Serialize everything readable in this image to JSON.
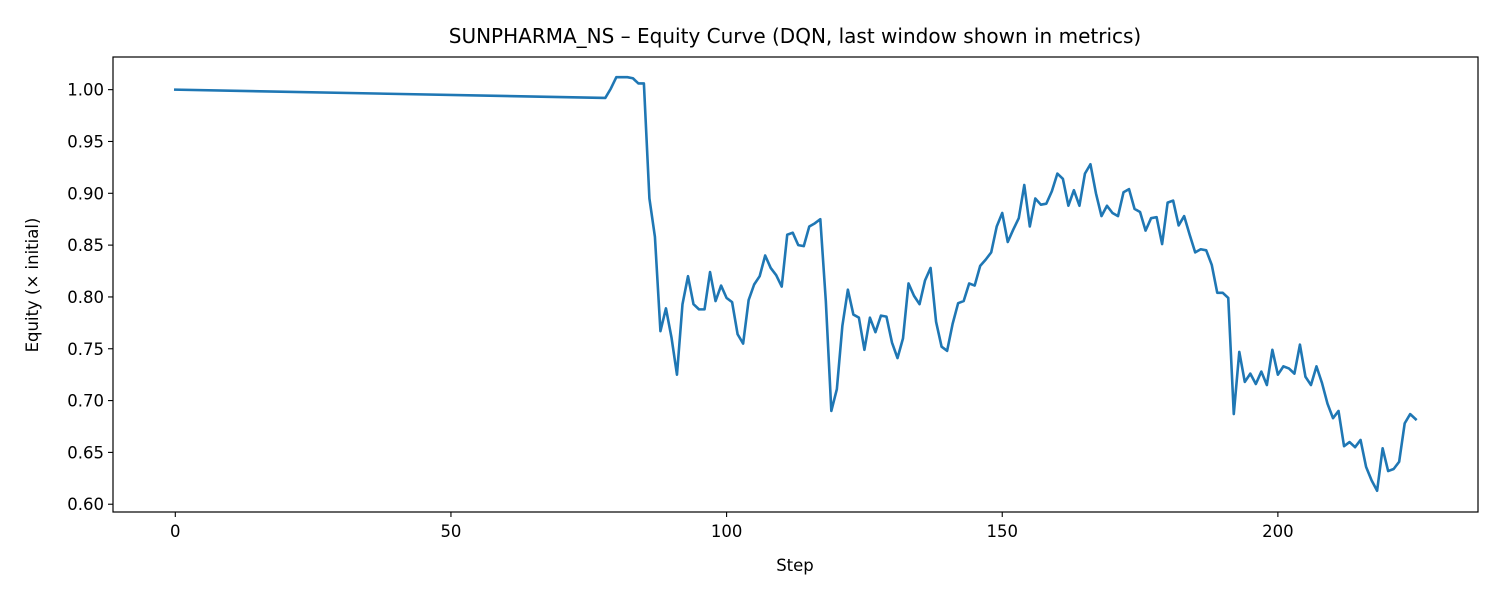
{
  "chart_data": {
    "type": "line",
    "title": "SUNPHARMA_NS – Equity Curve (DQN, last window shown in metrics)",
    "xlabel": "Step",
    "ylabel": "Equity (× initial)",
    "xlim": [
      -11.3,
      236.3
    ],
    "ylim": [
      0.5925,
      1.0315
    ],
    "xticks": [
      0,
      50,
      100,
      150,
      200
    ],
    "yticks": [
      0.6,
      0.65,
      0.7,
      0.75,
      0.8,
      0.85,
      0.9,
      0.95,
      1.0
    ],
    "xtick_labels": [
      "0",
      "50",
      "100",
      "150",
      "200"
    ],
    "ytick_labels": [
      "0.60",
      "0.65",
      "0.70",
      "0.75",
      "0.80",
      "0.85",
      "0.90",
      "0.95",
      "1.00"
    ],
    "grid": false,
    "line_color": "#1f77b4",
    "series": [
      {
        "x": [
          0,
          78,
          79,
          80,
          81,
          82,
          83,
          84,
          85,
          86,
          87,
          88,
          89,
          90,
          91,
          92,
          93,
          94,
          95,
          96,
          97,
          98,
          99,
          100,
          101,
          102,
          103,
          104,
          105,
          106,
          107,
          108,
          109,
          110,
          111,
          112,
          113,
          114,
          115,
          116,
          117,
          118,
          119,
          120,
          121,
          122,
          123,
          124,
          125,
          126,
          127,
          128,
          129,
          130,
          131,
          132,
          133,
          134,
          135,
          136,
          137,
          138,
          139,
          140,
          141,
          142,
          143,
          144,
          145,
          146,
          147,
          148,
          149,
          150,
          151,
          152,
          153,
          154,
          155,
          156,
          157,
          158,
          159,
          160,
          161,
          162,
          163,
          164,
          165,
          166,
          167,
          168,
          169,
          170,
          171,
          172,
          173,
          174,
          175,
          176,
          177,
          178,
          179,
          180,
          181,
          182,
          183,
          184,
          185,
          186,
          187,
          188,
          189,
          190,
          191,
          192,
          193,
          194,
          195,
          196,
          197,
          198,
          199,
          200,
          201,
          202,
          203,
          204,
          205,
          206,
          207,
          208,
          209,
          210,
          211,
          212,
          213,
          214,
          215,
          216,
          217,
          218,
          219,
          220,
          221,
          222,
          223,
          224,
          225
        ],
        "values": [
          1.0,
          0.992,
          1.001,
          1.012,
          1.012,
          1.012,
          1.011,
          1.006,
          1.006,
          0.895,
          0.858,
          0.767,
          0.789,
          0.761,
          0.725,
          0.793,
          0.82,
          0.793,
          0.788,
          0.788,
          0.824,
          0.796,
          0.811,
          0.799,
          0.795,
          0.764,
          0.755,
          0.797,
          0.812,
          0.82,
          0.84,
          0.828,
          0.821,
          0.81,
          0.86,
          0.862,
          0.85,
          0.849,
          0.868,
          0.871,
          0.875,
          0.796,
          0.69,
          0.711,
          0.772,
          0.807,
          0.783,
          0.78,
          0.749,
          0.78,
          0.766,
          0.782,
          0.781,
          0.756,
          0.741,
          0.76,
          0.813,
          0.801,
          0.793,
          0.816,
          0.828,
          0.776,
          0.752,
          0.748,
          0.774,
          0.794,
          0.796,
          0.813,
          0.811,
          0.83,
          0.836,
          0.843,
          0.868,
          0.881,
          0.853,
          0.865,
          0.876,
          0.908,
          0.868,
          0.895,
          0.889,
          0.89,
          0.902,
          0.919,
          0.914,
          0.888,
          0.903,
          0.888,
          0.919,
          0.928,
          0.9,
          0.878,
          0.888,
          0.881,
          0.878,
          0.901,
          0.904,
          0.885,
          0.882,
          0.864,
          0.876,
          0.877,
          0.851,
          0.891,
          0.893,
          0.869,
          0.878,
          0.86,
          0.843,
          0.846,
          0.845,
          0.831,
          0.804,
          0.804,
          0.799,
          0.687,
          0.747,
          0.718,
          0.726,
          0.716,
          0.728,
          0.715,
          0.749,
          0.725,
          0.733,
          0.731,
          0.726,
          0.754,
          0.723,
          0.715,
          0.733,
          0.717,
          0.697,
          0.683,
          0.69,
          0.656,
          0.66,
          0.655,
          0.662,
          0.636,
          0.623,
          0.613,
          0.654,
          0.632,
          0.634,
          0.641,
          0.678,
          0.687,
          0.682
        ]
      }
    ]
  }
}
